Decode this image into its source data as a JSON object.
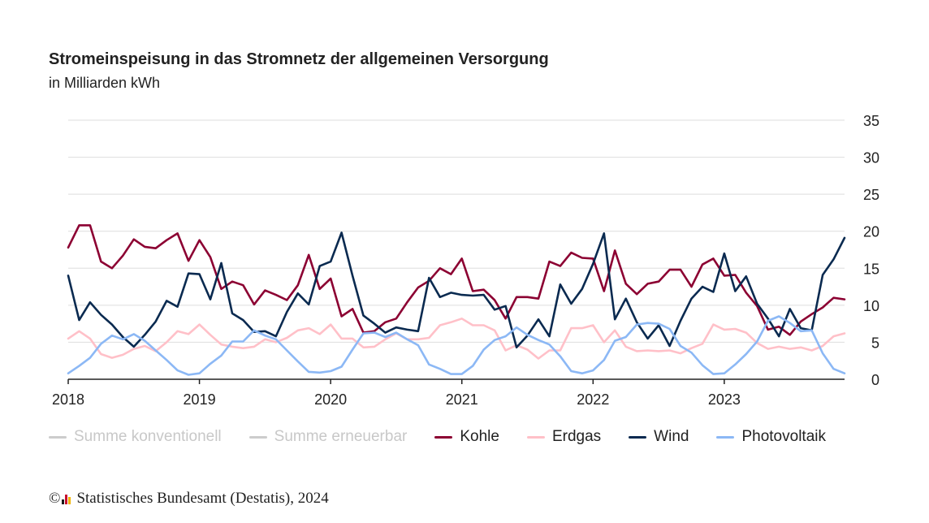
{
  "title": "Stromeinspeisung in das Stromnetz der allgemeinen Versorgung",
  "subtitle": "in Milliarden kWh",
  "footer": {
    "copyright_symbol": "©",
    "source": "Statistisches Bundesamt (Destatis), 2024"
  },
  "legend": [
    {
      "label": "Summe konventionell",
      "color": "#cccccc",
      "active": false
    },
    {
      "label": "Summe erneuerbar",
      "color": "#cccccc",
      "active": false
    },
    {
      "label": "Kohle",
      "color": "#8c0032",
      "active": true
    },
    {
      "label": "Erdgas",
      "color": "#ffc0c8",
      "active": true
    },
    {
      "label": "Wind",
      "color": "#0a2a50",
      "active": true
    },
    {
      "label": "Photovoltaik",
      "color": "#8cb8f5",
      "active": true
    }
  ],
  "chart_data": {
    "type": "line",
    "x_unit": "monthly, Jan 2018 – Dec 2023",
    "x_tick_labels": [
      "2018",
      "2019",
      "2020",
      "2021",
      "2022",
      "2023"
    ],
    "ylim": [
      0,
      35
    ],
    "y_ticks": [
      0,
      5,
      10,
      15,
      20,
      25,
      30,
      35
    ],
    "y_axis_side": "right",
    "grid": true,
    "legend_position": "bottom",
    "series": [
      {
        "name": "Kohle",
        "color": "#8c0032",
        "values": [
          17.8,
          20.8,
          20.8,
          15.9,
          15.0,
          16.7,
          18.9,
          17.9,
          17.7,
          18.8,
          19.7,
          16.0,
          18.8,
          16.5,
          12.2,
          13.2,
          12.7,
          10.1,
          12.0,
          11.4,
          10.7,
          12.7,
          16.8,
          12.2,
          13.6,
          8.5,
          9.5,
          6.3,
          6.5,
          7.7,
          8.2,
          10.4,
          12.4,
          13.3,
          15.0,
          14.2,
          16.3,
          11.9,
          12.1,
          10.7,
          8.2,
          11.1,
          11.1,
          10.9,
          15.9,
          15.3,
          17.1,
          16.4,
          16.3,
          11.9,
          17.4,
          12.9,
          11.5,
          12.9,
          13.2,
          14.8,
          14.8,
          12.5,
          15.5,
          16.3,
          14.0,
          14.1,
          11.7,
          9.9,
          6.7,
          7.1,
          6.0,
          7.8,
          8.8,
          9.7,
          11.0,
          10.8
        ]
      },
      {
        "name": "Erdgas",
        "color": "#ffc0c8",
        "values": [
          5.5,
          6.5,
          5.5,
          3.4,
          2.9,
          3.3,
          4.1,
          4.5,
          3.8,
          5.0,
          6.5,
          6.1,
          7.4,
          6.0,
          4.7,
          4.4,
          4.2,
          4.4,
          5.4,
          5.0,
          5.6,
          6.6,
          6.9,
          6.1,
          7.4,
          5.5,
          5.5,
          4.3,
          4.4,
          5.4,
          6.2,
          5.4,
          5.4,
          5.6,
          7.3,
          7.7,
          8.2,
          7.3,
          7.3,
          6.6,
          3.9,
          4.6,
          4.0,
          2.8,
          3.9,
          3.9,
          6.9,
          6.9,
          7.3,
          5.0,
          6.6,
          4.4,
          3.8,
          3.9,
          3.8,
          3.9,
          3.5,
          4.2,
          4.8,
          7.4,
          6.7,
          6.8,
          6.3,
          4.9,
          4.1,
          4.4,
          4.1,
          4.3,
          3.9,
          4.5,
          5.8,
          6.2
        ]
      },
      {
        "name": "Wind",
        "color": "#0a2a50",
        "values": [
          14.0,
          8.0,
          10.4,
          8.7,
          7.4,
          5.7,
          4.4,
          6.0,
          7.8,
          10.6,
          9.8,
          14.3,
          14.2,
          10.8,
          15.7,
          8.9,
          8.0,
          6.4,
          6.5,
          5.8,
          9.1,
          11.6,
          10.1,
          15.3,
          15.9,
          19.8,
          14.0,
          8.6,
          7.5,
          6.3,
          7.0,
          6.7,
          6.5,
          13.7,
          11.1,
          11.7,
          11.4,
          11.3,
          11.4,
          9.4,
          9.9,
          4.3,
          5.9,
          8.1,
          5.8,
          12.8,
          10.2,
          12.2,
          15.6,
          19.7,
          8.1,
          10.9,
          7.7,
          5.5,
          7.3,
          4.5,
          7.9,
          10.9,
          12.5,
          11.8,
          17.0,
          11.9,
          13.9,
          10.2,
          8.2,
          5.8,
          9.5,
          6.9,
          6.6,
          14.1,
          16.2,
          19.1
        ]
      },
      {
        "name": "Photovoltaik",
        "color": "#8cb8f5",
        "values": [
          0.8,
          1.8,
          2.9,
          4.8,
          5.9,
          5.4,
          6.1,
          5.2,
          3.9,
          2.6,
          1.2,
          0.6,
          0.8,
          2.1,
          3.2,
          5.1,
          5.1,
          6.6,
          5.9,
          5.4,
          3.9,
          2.4,
          1.0,
          0.9,
          1.1,
          1.7,
          4.0,
          6.2,
          6.3,
          5.7,
          6.3,
          5.4,
          4.6,
          2.0,
          1.4,
          0.7,
          0.7,
          1.8,
          4.0,
          5.3,
          5.8,
          7.0,
          6.0,
          5.3,
          4.7,
          3.1,
          1.1,
          0.8,
          1.2,
          2.6,
          5.2,
          5.7,
          7.4,
          7.6,
          7.5,
          6.8,
          4.5,
          3.6,
          1.9,
          0.7,
          0.8,
          2.0,
          3.4,
          5.1,
          7.9,
          8.5,
          7.6,
          6.5,
          6.6,
          3.5,
          1.4,
          0.8
        ]
      }
    ]
  }
}
